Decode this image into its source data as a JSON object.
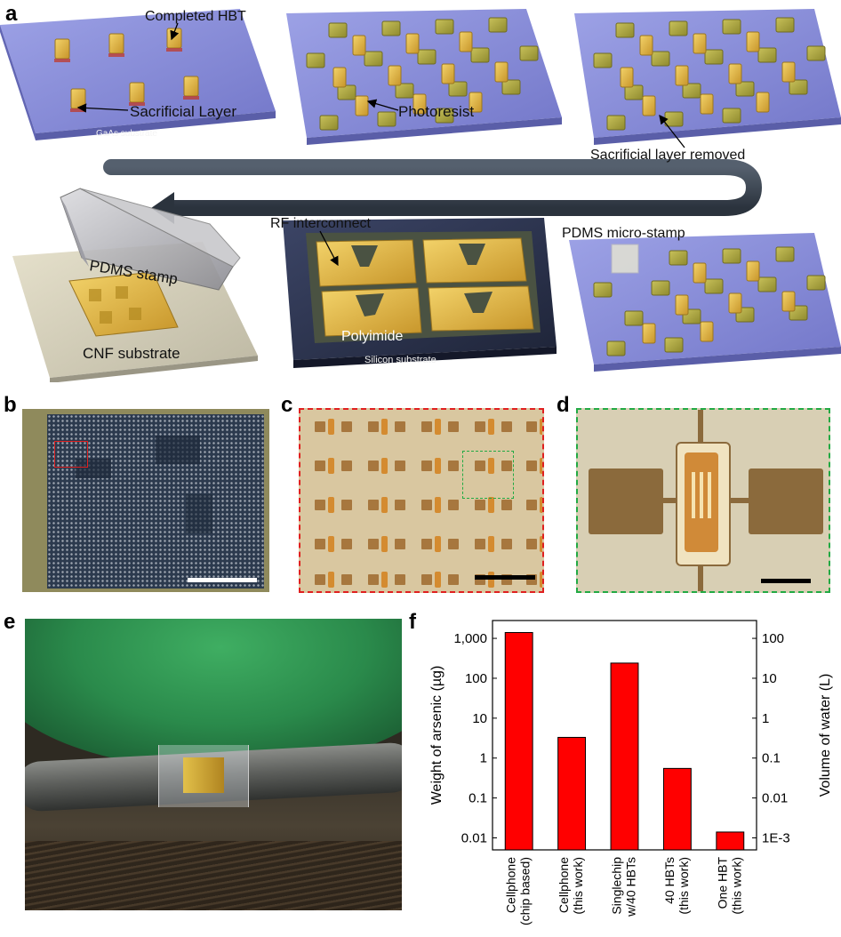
{
  "panels": {
    "a": {
      "label": "a",
      "labels": {
        "completed_hbt": "Completed HBT",
        "sacrificial_layer": "Sacrificial Layer",
        "gaas_substrate": "GaAs substrate",
        "photoresist": "Photoresist",
        "sacrificial_removed": "Sacrificial layer removed",
        "pdms_micro_stamp": "PDMS micro-stamp",
        "rf_interconnect": "RF interconnect",
        "polyimide": "Polyimide",
        "silicon_substrate": "Silicon substrate",
        "pdms_stamp": "PDMS stamp",
        "cnf_substrate": "CNF substrate"
      }
    },
    "b": {
      "label": "b"
    },
    "c": {
      "label": "c"
    },
    "d": {
      "label": "d"
    },
    "e": {
      "label": "e"
    },
    "f": {
      "label": "f"
    }
  },
  "colors": {
    "substrate_blue": "#8c8fd9",
    "gold": "#e0b840",
    "bar_red": "#ff0000",
    "silicon_dark": "#2c3350"
  },
  "chart_data": {
    "type": "bar",
    "categories": [
      "Cellphone (chip based)",
      "Cellphone (this work)",
      "Singlechip w/40 HBTs",
      "40 HBTs (this work)",
      "One HBT (this work)"
    ],
    "category_lines": [
      [
        "Cellphone",
        "(chip based)"
      ],
      [
        "Cellphone",
        "(this work)"
      ],
      [
        "Singlechip",
        "w/40 HBTs"
      ],
      [
        "40 HBTs",
        "(this work)"
      ],
      [
        "One HBT",
        "(this work)"
      ]
    ],
    "values": [
      1400,
      3.3,
      240,
      0.55,
      0.014
    ],
    "ylabel": "Weight of arsenic (µg)",
    "y2label": "Volume of water (L)",
    "yscale": "log",
    "ylim": [
      0.005,
      2800
    ],
    "y2_scale_factor": 0.1,
    "yticks": [
      {
        "v": 1000,
        "label": "1,000"
      },
      {
        "v": 100,
        "label": "100"
      },
      {
        "v": 10,
        "label": "10"
      },
      {
        "v": 1,
        "label": "1"
      },
      {
        "v": 0.1,
        "label": "0.1"
      },
      {
        "v": 0.01,
        "label": "0.01"
      }
    ],
    "y2ticks": [
      {
        "v": 100,
        "label": "100"
      },
      {
        "v": 10,
        "label": "10"
      },
      {
        "v": 1,
        "label": "1"
      },
      {
        "v": 0.1,
        "label": "0.1"
      },
      {
        "v": 0.01,
        "label": "0.01"
      },
      {
        "v": 0.001,
        "label": "1E-3"
      }
    ],
    "grid": false
  }
}
